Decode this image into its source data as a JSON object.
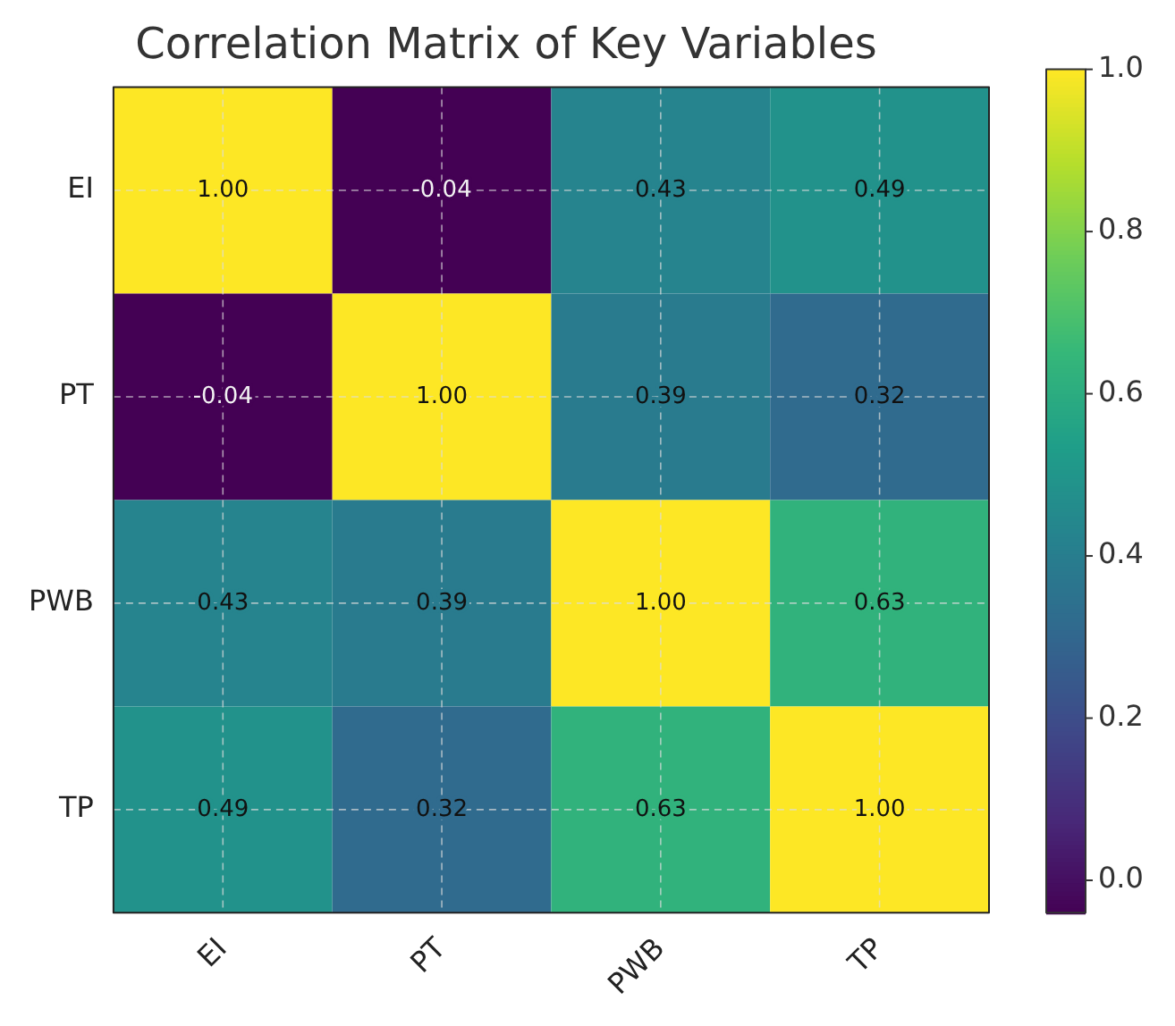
{
  "chart_data": {
    "type": "heatmap",
    "title": "Correlation Matrix of Key Variables",
    "categories": [
      "EI",
      "PT",
      "PWB",
      "TP"
    ],
    "y_categories": [
      "EI",
      "PT",
      "PWB",
      "TP"
    ],
    "cells": [
      [
        1.0,
        -0.04,
        0.43,
        0.49
      ],
      [
        -0.04,
        1.0,
        0.39,
        0.32
      ],
      [
        0.43,
        0.39,
        1.0,
        0.63
      ],
      [
        0.49,
        0.32,
        0.63,
        1.0
      ]
    ],
    "cell_labels": [
      [
        "1.00",
        "-0.04",
        "0.43",
        "0.49"
      ],
      [
        "-0.04",
        "1.00",
        "0.39",
        "0.32"
      ],
      [
        "0.43",
        "0.39",
        "1.00",
        "0.63"
      ],
      [
        "0.49",
        "0.32",
        "0.63",
        "1.00"
      ]
    ],
    "clim": [
      -0.04,
      1.0
    ],
    "cticks": [
      {
        "value": 0,
        "label": "0.0"
      },
      {
        "value": 0.2,
        "label": "0.2"
      },
      {
        "value": 0.4,
        "label": "0.4"
      },
      {
        "value": 0.6,
        "label": "0.6"
      },
      {
        "value": 0.8,
        "label": "0.8"
      },
      {
        "value": 1.0,
        "label": "1.0"
      }
    ],
    "grid": true
  }
}
